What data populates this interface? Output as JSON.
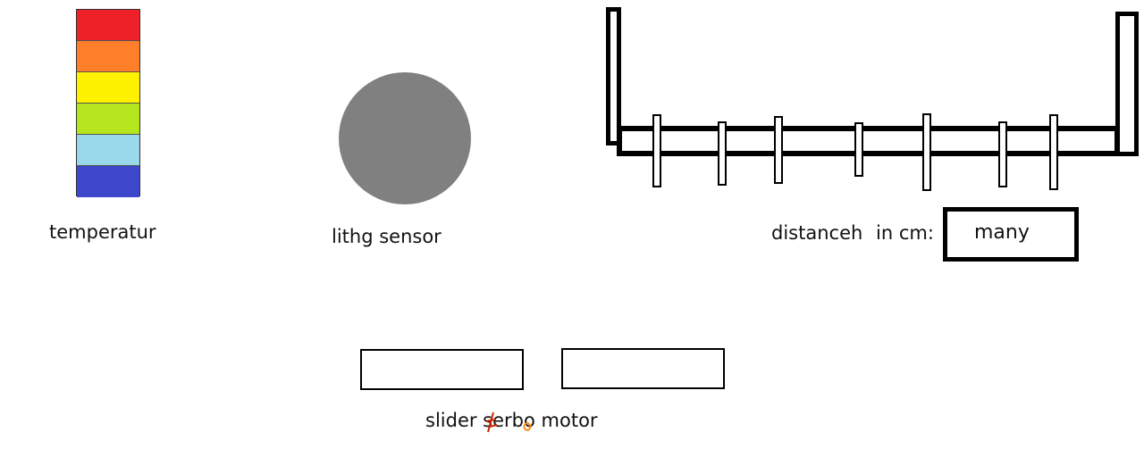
{
  "temperature": {
    "label": "temperatur",
    "bands": [
      "#ee2028",
      "#ff7e2a",
      "#fff200",
      "#b5e61d",
      "#99d9ea",
      "#3f48cc"
    ]
  },
  "light_sensor": {
    "label": "lithg sensor",
    "circle_color": "#808080"
  },
  "distance": {
    "label": "distanceh",
    "unit_label": "in cm:",
    "value": "many"
  },
  "servo": {
    "label_part1": "slider ",
    "label_part2": "serbo",
    "label_part3": " motor",
    "scribble_color": "#cc2200"
  }
}
